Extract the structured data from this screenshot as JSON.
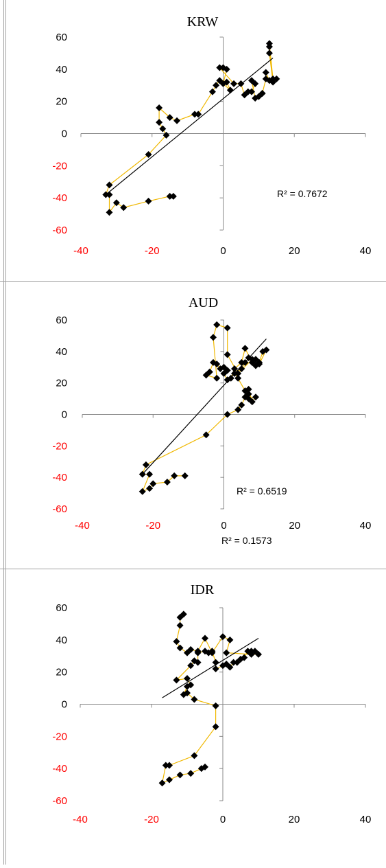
{
  "style": {
    "connector_color": "#f0b800",
    "trend_color": "#000000",
    "marker_color": "#000000",
    "negative_tick_color": "#ff0000",
    "positive_tick_color": "#000000"
  },
  "chart_data": [
    {
      "type": "scatter",
      "title": "KRW",
      "xlim": [
        -40,
        40
      ],
      "ylim": [
        -60,
        60
      ],
      "x_ticks": [
        "-40",
        "-20",
        "0",
        "20",
        "40"
      ],
      "y_ticks": [
        "60",
        "40",
        "20",
        "0",
        "-20",
        "-40",
        "-60"
      ],
      "annotation": "R² = 0.7672",
      "trendline": {
        "x": [
          -33,
          14
        ],
        "y": [
          -38,
          47
        ]
      },
      "points": [
        [
          -14,
          -39
        ],
        [
          -15,
          -39
        ],
        [
          -21,
          -42
        ],
        [
          -28,
          -46
        ],
        [
          -30,
          -43
        ],
        [
          -32,
          -49
        ],
        [
          -32,
          -38
        ],
        [
          -33,
          -38
        ],
        [
          -32,
          -32
        ],
        [
          -21,
          -13
        ],
        [
          -16,
          -1
        ],
        [
          -17,
          3
        ],
        [
          -18,
          7
        ],
        [
          -18,
          16
        ],
        [
          -15,
          10
        ],
        [
          -13,
          8
        ],
        [
          -8,
          12
        ],
        [
          -7,
          12
        ],
        [
          -3,
          26
        ],
        [
          -2,
          30
        ],
        [
          -1,
          33
        ],
        [
          1,
          32
        ],
        [
          2,
          27
        ],
        [
          0,
          31
        ],
        [
          1,
          40
        ],
        [
          0,
          41
        ],
        [
          -1,
          41
        ],
        [
          3,
          31
        ],
        [
          5,
          31
        ],
        [
          6,
          24
        ],
        [
          7,
          26
        ],
        [
          8,
          26
        ],
        [
          9,
          31
        ],
        [
          8,
          33
        ],
        [
          9,
          22
        ],
        [
          10,
          23
        ],
        [
          11,
          25
        ],
        [
          11,
          25
        ],
        [
          12,
          34
        ],
        [
          12,
          38
        ],
        [
          13,
          33
        ],
        [
          14,
          32
        ],
        [
          13,
          50
        ],
        [
          13,
          54
        ],
        [
          13,
          56
        ],
        [
          14,
          34
        ],
        [
          15,
          34
        ]
      ]
    },
    {
      "type": "scatter",
      "title": "AUD",
      "xlim": [
        -40,
        40
      ],
      "ylim": [
        -60,
        60
      ],
      "x_ticks": [
        "-40",
        "-20",
        "0",
        "20",
        "40"
      ],
      "y_ticks": [
        "60",
        "40",
        "20",
        "0",
        "-20",
        "-40",
        "-60"
      ],
      "annotation": "R² = 0.6519",
      "trendline": {
        "x": [
          -23,
          12
        ],
        "y": [
          -38,
          48
        ]
      },
      "points": [
        [
          -11,
          -39
        ],
        [
          -14,
          -39
        ],
        [
          -16,
          -43
        ],
        [
          -20,
          -44
        ],
        [
          -21,
          -47
        ],
        [
          -23,
          -49
        ],
        [
          -21,
          -38
        ],
        [
          -23,
          -38
        ],
        [
          -22,
          -32
        ],
        [
          -5,
          -13
        ],
        [
          1,
          0
        ],
        [
          4,
          3
        ],
        [
          5,
          6
        ],
        [
          6,
          11
        ],
        [
          7,
          13
        ],
        [
          7,
          16
        ],
        [
          8,
          8
        ],
        [
          9,
          11
        ],
        [
          7,
          10
        ],
        [
          6,
          15
        ],
        [
          4,
          23
        ],
        [
          3,
          26
        ],
        [
          5,
          29
        ],
        [
          6,
          33
        ],
        [
          7,
          36
        ],
        [
          9,
          35
        ],
        [
          10,
          33
        ],
        [
          11,
          40
        ],
        [
          12,
          41
        ],
        [
          10,
          32
        ],
        [
          9,
          31
        ],
        [
          8,
          33
        ],
        [
          6,
          42
        ],
        [
          5,
          33
        ],
        [
          3,
          29
        ],
        [
          2,
          23
        ],
        [
          1,
          22
        ],
        [
          0,
          26
        ],
        [
          1,
          28
        ],
        [
          0,
          30
        ],
        [
          -1,
          29
        ],
        [
          -2,
          32
        ],
        [
          -3,
          33
        ],
        [
          -4,
          27
        ],
        [
          -5,
          25
        ],
        [
          -2,
          23
        ],
        [
          -3,
          49
        ],
        [
          -2,
          57
        ],
        [
          1,
          55
        ],
        [
          1,
          38
        ],
        [
          4,
          26
        ],
        [
          8,
          35
        ]
      ]
    },
    {
      "type": "scatter",
      "title": "IDR",
      "xlim": [
        -40,
        40
      ],
      "ylim": [
        -60,
        60
      ],
      "x_ticks": [
        "-40",
        "-20",
        "0",
        "20",
        "40"
      ],
      "y_ticks": [
        "60",
        "40",
        "20",
        "0",
        "-20",
        "-40",
        "-60"
      ],
      "annotation": "R² = 0.1573",
      "trendline": {
        "x": [
          -17,
          10
        ],
        "y": [
          4,
          41
        ]
      },
      "points": [
        [
          -5,
          -39
        ],
        [
          -6,
          -40
        ],
        [
          -9,
          -43
        ],
        [
          -12,
          -44
        ],
        [
          -15,
          -47
        ],
        [
          -17,
          -49
        ],
        [
          -16,
          -38
        ],
        [
          -15,
          -38
        ],
        [
          -8,
          -32
        ],
        [
          -2,
          -14
        ],
        [
          -2,
          -1
        ],
        [
          -8,
          3
        ],
        [
          -10,
          7
        ],
        [
          -11,
          6
        ],
        [
          -10,
          11
        ],
        [
          -9,
          12
        ],
        [
          -10,
          16
        ],
        [
          -13,
          15
        ],
        [
          -9,
          24
        ],
        [
          -8,
          27
        ],
        [
          -7,
          26
        ],
        [
          -7,
          32
        ],
        [
          -5,
          33
        ],
        [
          -4,
          32
        ],
        [
          -3,
          33
        ],
        [
          -2,
          26
        ],
        [
          -2,
          22
        ],
        [
          0,
          24
        ],
        [
          1,
          25
        ],
        [
          2,
          23
        ],
        [
          3,
          26
        ],
        [
          4,
          26
        ],
        [
          5,
          28
        ],
        [
          6,
          29
        ],
        [
          7,
          33
        ],
        [
          8,
          33
        ],
        [
          9,
          33
        ],
        [
          10,
          31
        ],
        [
          8,
          31
        ],
        [
          1,
          32
        ],
        [
          2,
          40
        ],
        [
          0,
          42
        ],
        [
          -3,
          32
        ],
        [
          -5,
          41
        ],
        [
          -7,
          33
        ],
        [
          -9,
          34
        ],
        [
          -10,
          32
        ],
        [
          -12,
          35
        ],
        [
          -13,
          39
        ],
        [
          -12,
          49
        ],
        [
          -12,
          54
        ],
        [
          -11,
          56
        ]
      ]
    }
  ]
}
